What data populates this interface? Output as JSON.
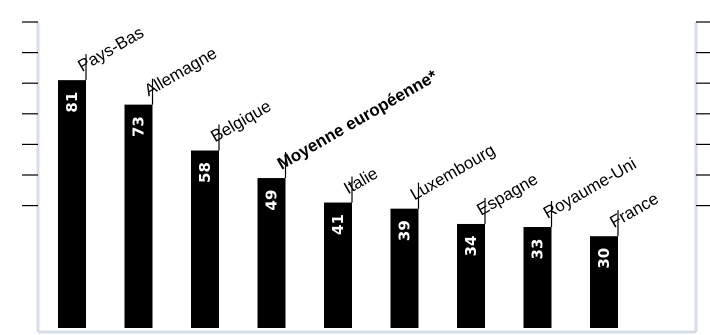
{
  "chart_data": {
    "type": "bar",
    "categories": [
      "Pays-Bas",
      "Allemagne",
      "Belgique",
      "Moyenne européenne*",
      "Italie",
      "Luxembourg",
      "Espagne",
      "Royaume-Uni",
      "France"
    ],
    "values": [
      81,
      73,
      58,
      49,
      41,
      39,
      34,
      33,
      30
    ],
    "highlight": [
      "Moyenne européenne*"
    ],
    "ylim": [
      0,
      100
    ],
    "grid": false,
    "colors": {
      "bar": "#000000",
      "value_text": "#ffffff",
      "axis": "#d7dde4",
      "tick": "#000000"
    }
  }
}
